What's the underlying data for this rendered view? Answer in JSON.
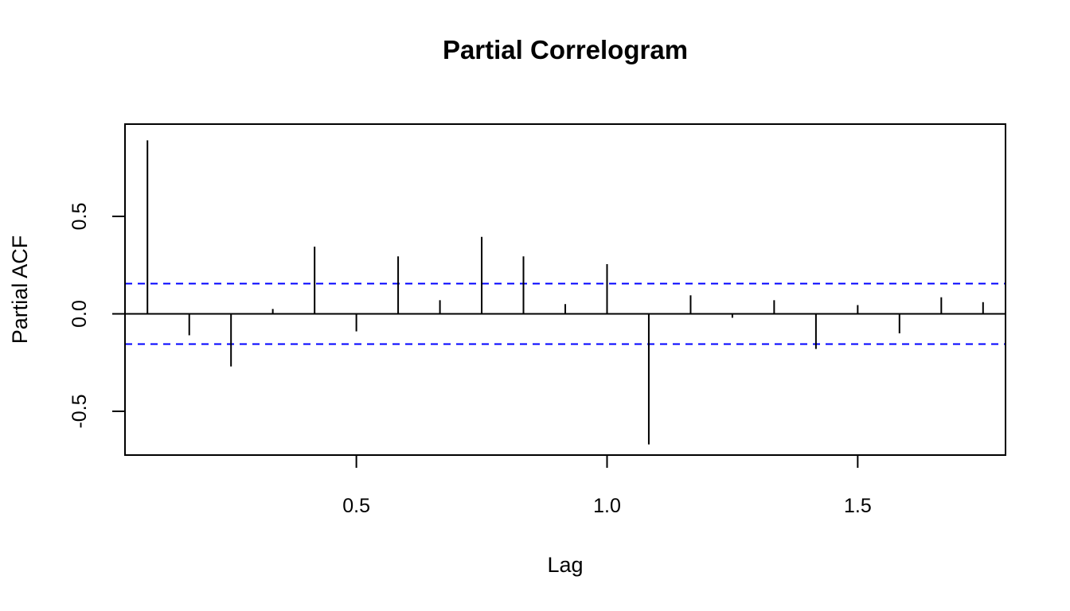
{
  "chart_data": {
    "type": "bar",
    "title": "Partial Correlogram",
    "xlabel": "Lag",
    "ylabel": "Partial ACF",
    "xlim": [
      0.0385,
      1.7948
    ],
    "ylim": [
      -0.7244,
      0.9733
    ],
    "x_ticks": [
      0.5,
      1.0,
      1.5
    ],
    "x_tick_labels": [
      "0.5",
      "1.0",
      "1.5"
    ],
    "y_ticks": [
      -0.5,
      0.0,
      0.5
    ],
    "y_tick_labels": [
      "-0.5",
      "0.0",
      "0.5"
    ],
    "confidence_bound": 0.155,
    "confidence_line_color": "#0000ff",
    "spike_color": "#000000",
    "series": [
      {
        "lags": [
          0.0833,
          0.1667,
          0.25,
          0.3333,
          0.4167,
          0.5,
          0.5833,
          0.6667,
          0.75,
          0.8333,
          0.9167,
          1.0,
          1.0833,
          1.1667,
          1.25,
          1.3333,
          1.4167,
          1.5,
          1.5833,
          1.6667,
          1.75
        ],
        "values": [
          0.89,
          -0.11,
          -0.27,
          0.025,
          0.345,
          -0.09,
          0.295,
          0.07,
          0.395,
          0.295,
          0.05,
          0.255,
          -0.67,
          0.095,
          -0.02,
          0.07,
          -0.18,
          0.045,
          -0.1,
          0.085,
          0.06
        ]
      }
    ]
  }
}
